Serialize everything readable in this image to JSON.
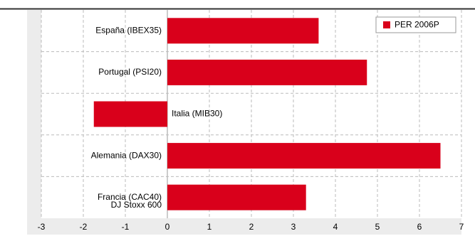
{
  "chart_data": {
    "type": "hbar",
    "categories": [
      "España (IBEX35)",
      "Portugal (PSI20)",
      "Italia (MIB30)",
      "Alemania (DAX30)",
      "Francia (CAC40)"
    ],
    "series": [
      {
        "name": "PER 2006P",
        "color": "#d9001b",
        "values": [
          3.6,
          4.75,
          -1.75,
          6.5,
          3.3
        ]
      }
    ],
    "annotations": [
      "DJ Stoxx 600"
    ],
    "xlim": [
      -3,
      7
    ],
    "xticks": [
      -3,
      -2,
      -1,
      0,
      1,
      2,
      3,
      4,
      5,
      6,
      7
    ],
    "grid": true,
    "legend": "top-right"
  }
}
